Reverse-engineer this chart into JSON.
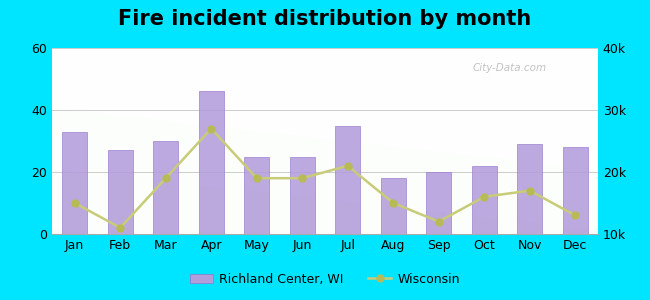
{
  "title": "Fire incident distribution by month",
  "months": [
    "Jan",
    "Feb",
    "Mar",
    "Apr",
    "May",
    "Jun",
    "Jul",
    "Aug",
    "Sep",
    "Oct",
    "Nov",
    "Dec"
  ],
  "richland_values": [
    33,
    27,
    30,
    46,
    25,
    25,
    35,
    18,
    20,
    22,
    29,
    28
  ],
  "wisconsin_values": [
    15000,
    11000,
    19000,
    27000,
    19000,
    19000,
    21000,
    15000,
    12000,
    16000,
    17000,
    13000
  ],
  "bar_color": "#b39ddb",
  "bar_edge_color": "#9575cd",
  "line_color": "#c8cb78",
  "line_marker_color": "#b8bb55",
  "outer_background": "#00e5ff",
  "ylim_left": [
    0,
    60
  ],
  "ylim_right": [
    10000,
    40000
  ],
  "yticks_left": [
    0,
    20,
    40,
    60
  ],
  "yticks_right": [
    10000,
    20000,
    30000,
    40000
  ],
  "ytick_labels_right": [
    "10k",
    "20k",
    "30k",
    "40k"
  ],
  "legend_label_bar": "Richland Center, WI",
  "legend_label_line": "Wisconsin",
  "title_fontsize": 15,
  "watermark": "City-Data.com"
}
